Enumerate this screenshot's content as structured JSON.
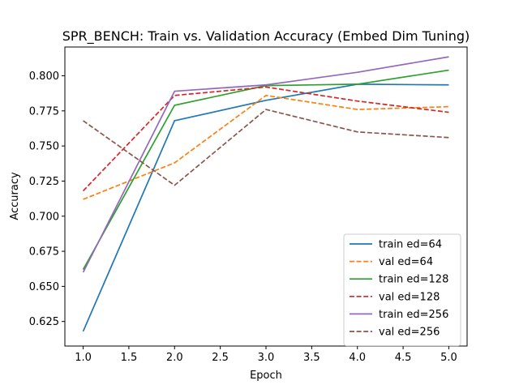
{
  "chart_data": {
    "type": "line",
    "title": "SPR_BENCH: Train vs. Validation Accuracy (Embed Dim Tuning)",
    "xlabel": "Epoch",
    "ylabel": "Accuracy",
    "x": [
      1,
      2,
      3,
      4,
      5
    ],
    "xlim": [
      0.8,
      5.2
    ],
    "ylim": [
      0.6075,
      0.8205
    ],
    "xticks": [
      "1.0",
      "1.5",
      "2.0",
      "2.5",
      "3.0",
      "3.5",
      "4.0",
      "4.5",
      "5.0"
    ],
    "yticks": [
      "0.625",
      "0.650",
      "0.675",
      "0.700",
      "0.725",
      "0.750",
      "0.775",
      "0.800"
    ],
    "grid": false,
    "legend_position": "lower-right",
    "series": [
      {
        "name": "train ed=64",
        "values": [
          0.618,
          0.768,
          0.7825,
          0.794,
          0.7935
        ],
        "color": "#1f77b4",
        "dash": "solid"
      },
      {
        "name": "val ed=64",
        "values": [
          0.712,
          0.738,
          0.786,
          0.776,
          0.778
        ],
        "color": "#ff7f0e",
        "dash": "dashed"
      },
      {
        "name": "train ed=128",
        "values": [
          0.662,
          0.779,
          0.793,
          0.794,
          0.804
        ],
        "color": "#2ca02c",
        "dash": "solid"
      },
      {
        "name": "val ed=128",
        "values": [
          0.718,
          0.786,
          0.792,
          0.782,
          0.774
        ],
        "color": "#d62728",
        "dash": "dashed"
      },
      {
        "name": "train ed=256",
        "values": [
          0.66,
          0.789,
          0.7935,
          0.8025,
          0.8135
        ],
        "color": "#9467bd",
        "dash": "solid"
      },
      {
        "name": "val ed=256",
        "values": [
          0.768,
          0.722,
          0.776,
          0.76,
          0.756
        ],
        "color": "#8c564b",
        "dash": "dashed"
      }
    ]
  }
}
